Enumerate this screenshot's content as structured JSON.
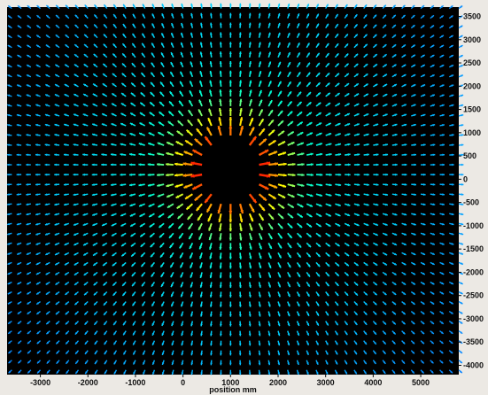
{
  "chart_data": {
    "type": "vector-field",
    "title": "",
    "xlabel": "position mm",
    "ylabel": "",
    "xlim": [
      -3700,
      5800
    ],
    "ylim": [
      -4200,
      3700
    ],
    "x_ticks": [
      -3000,
      -2000,
      -1000,
      0,
      1000,
      2000,
      3000,
      4000,
      5000
    ],
    "y_ticks": [
      3500,
      3000,
      2500,
      2000,
      1500,
      1000,
      500,
      0,
      -500,
      -1000,
      -1500,
      -2000,
      -2500,
      -3000,
      -3500,
      -4000
    ],
    "grid": false,
    "background_color": "#000000",
    "field": {
      "center": [
        1000,
        200
      ],
      "obstacle_radius": 600,
      "x_start": -3600,
      "x_step": 200,
      "x_count": 48,
      "y_start": -4100,
      "y_step": 210,
      "y_count": 38,
      "description": "radially outward arrows, magnitude decreasing with distance"
    },
    "colormap": [
      "#1a1aff",
      "#00d0ff",
      "#00ffd0",
      "#ffff00",
      "#ff8000",
      "#ff2000"
    ]
  }
}
